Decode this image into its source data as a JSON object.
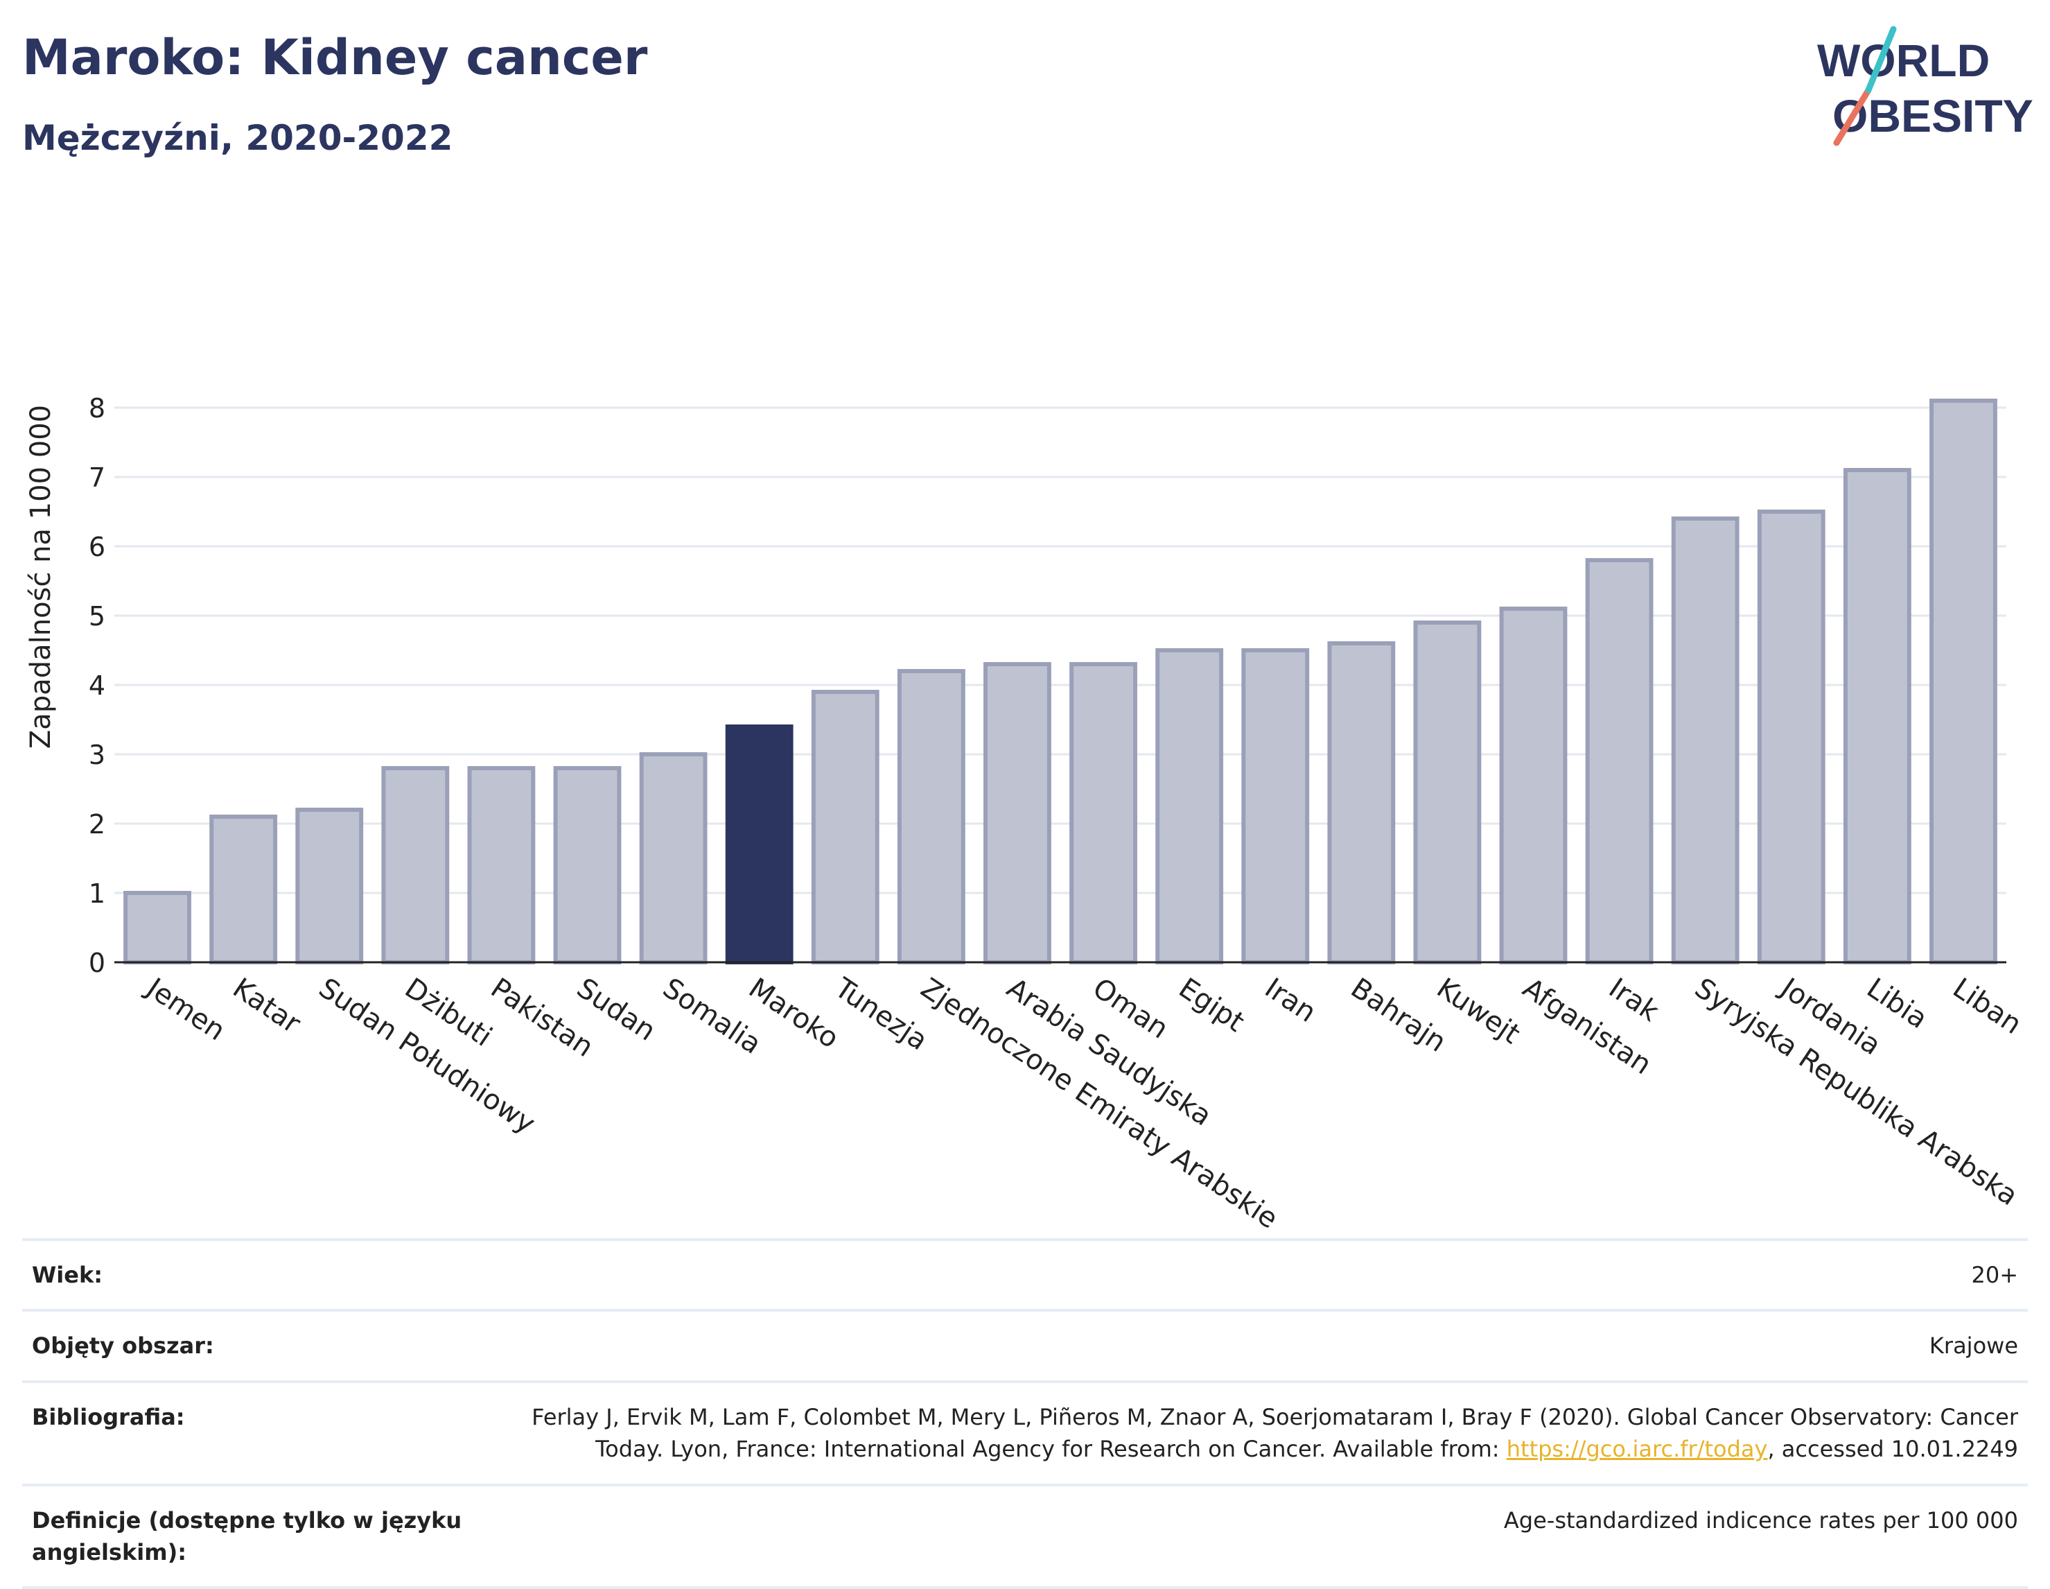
{
  "title": "Maroko: Kidney cancer",
  "subtitle": "Mężczyźni, 2020-2022",
  "logo": {
    "line1": "WORLD",
    "line2": "OBESITY"
  },
  "colors": {
    "highlight": "#2c3560",
    "bar": "#bfc3d1",
    "bar_edge": "#9aa0b8",
    "grid": "#e4e7ee",
    "link": "#e8b32a"
  },
  "chart_data": {
    "type": "bar",
    "ylabel": "Zapadalność na 100 000",
    "ylim": [
      0,
      8.3
    ],
    "yticks": [
      0,
      1,
      2,
      3,
      4,
      5,
      6,
      7,
      8
    ],
    "grid": true,
    "highlight": "Maroko",
    "categories": [
      "Jemen",
      "Katar",
      "Sudan Południowy",
      "Dżibuti",
      "Pakistan",
      "Sudan",
      "Somalia",
      "Maroko",
      "Tunezja",
      "Zjednoczone Emiraty Arabskie",
      "Arabia Saudyjska",
      "Oman",
      "Egipt",
      "Iran",
      "Bahrajn",
      "Kuwejt",
      "Afganistan",
      "Irak",
      "Syryjska Republika Arabska",
      "Jordania",
      "Libia",
      "Liban"
    ],
    "values": [
      1.0,
      2.1,
      2.2,
      2.8,
      2.8,
      2.8,
      3.0,
      3.4,
      3.9,
      4.2,
      4.3,
      4.3,
      4.5,
      4.5,
      4.6,
      4.9,
      5.1,
      5.8,
      6.4,
      6.5,
      7.1,
      8.1
    ]
  },
  "info": {
    "rows": [
      {
        "key": "Wiek:",
        "value": "20+"
      },
      {
        "key": "Objęty obszar:",
        "value": "Krajowe"
      },
      {
        "key": "Bibliografia:",
        "value": "Ferlay J, Ervik M, Lam F, Colombet M, Mery L, Piñeros M, Znaor A, Soerjomataram I, Bray F (2020). Global Cancer Observatory: Cancer Today. Lyon, France: International Agency for Research on Cancer. Available from: ",
        "link": "https://gco.iarc.fr/today",
        "suffix": ", accessed 10.01.2249"
      },
      {
        "key": "Definicje (dostępne tylko w języku angielskim):",
        "value": "Age-standardized indicence rates per 100 000"
      }
    ]
  }
}
